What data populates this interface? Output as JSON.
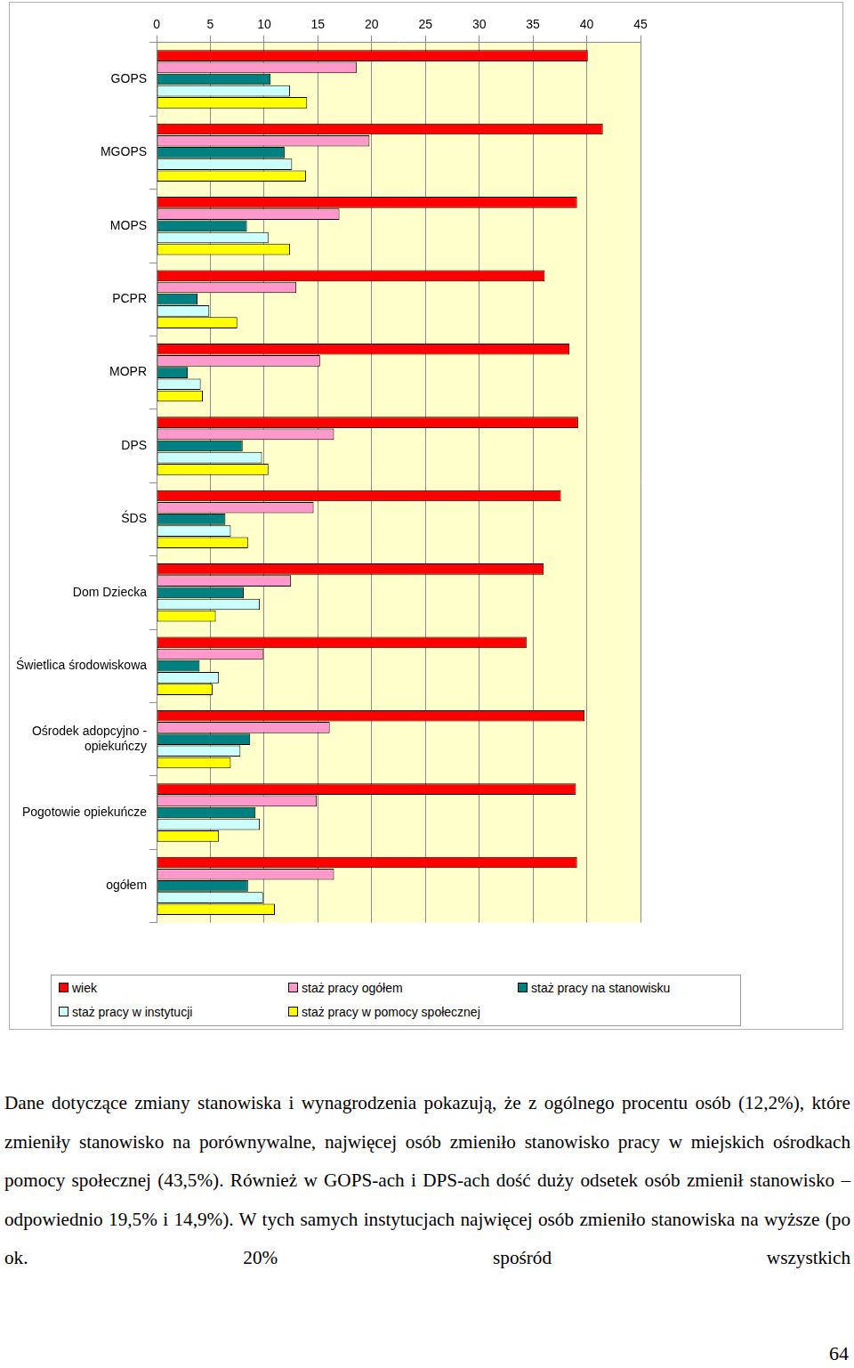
{
  "chart_data": {
    "type": "bar",
    "orientation": "horizontal",
    "grid": true,
    "legend": "bottom",
    "categories": [
      "GOPS",
      "MGOPS",
      "MOPS",
      "PCPR",
      "MOPR",
      "DPS",
      "ŚDS",
      "Dom Dziecka",
      "Świetlica środowiskowa",
      "Ośrodek adopcyjno - opiekuńczy",
      "Pogotowie opiekuńcze",
      "ogółem"
    ],
    "series": [
      {
        "name": "wiek",
        "color": "#ff0000",
        "values": [
          40.1,
          41.5,
          39.1,
          36.1,
          38.4,
          39.2,
          37.6,
          36.0,
          34.4,
          39.8,
          39.0,
          39.1
        ]
      },
      {
        "name": "staż pracy ogółem",
        "color": "#ff99cc",
        "values": [
          18.6,
          19.8,
          17.0,
          13.0,
          15.2,
          16.5,
          14.6,
          12.5,
          9.9,
          16.1,
          14.9,
          16.5
        ]
      },
      {
        "name": "staż pracy na stanowisku",
        "color": "#008080",
        "values": [
          10.6,
          11.9,
          8.4,
          3.8,
          2.9,
          8.0,
          6.4,
          8.1,
          4.0,
          8.7,
          9.2,
          8.5
        ]
      },
      {
        "name": "staż pracy w instytucji",
        "color": "#ccffff",
        "values": [
          12.4,
          12.6,
          10.4,
          4.9,
          4.1,
          9.8,
          6.9,
          9.6,
          5.8,
          7.8,
          9.6,
          9.9
        ]
      },
      {
        "name": "staż pracy w pomocy społecznej",
        "color": "#ffff00",
        "values": [
          14.0,
          13.9,
          12.4,
          7.5,
          4.3,
          10.4,
          8.5,
          5.5,
          5.2,
          6.9,
          5.8,
          11.0
        ]
      }
    ],
    "xlim": [
      0,
      45
    ],
    "xticks": [
      0,
      5,
      10,
      15,
      20,
      25,
      30,
      35,
      40,
      45
    ]
  },
  "text": "Dane dotyczące zmiany stanowiska i wynagrodzenia pokazują, że z ogólnego procentu osób (12,2%), które zmieniły stanowisko na porównywalne, najwięcej osób zmieniło stanowisko pracy w miejskich ośrodkach pomocy społecznej (43,5%). Również w GOPS-ach i DPS-ach dość duży odsetek osób zmienił stanowisko – odpowiednio 19,5% i 14,9%). W tych samych instytucjach najwięcej osób zmieniło stanowiska na wyższe (po ok. 20% spośród wszystkich",
  "page_number": 64
}
